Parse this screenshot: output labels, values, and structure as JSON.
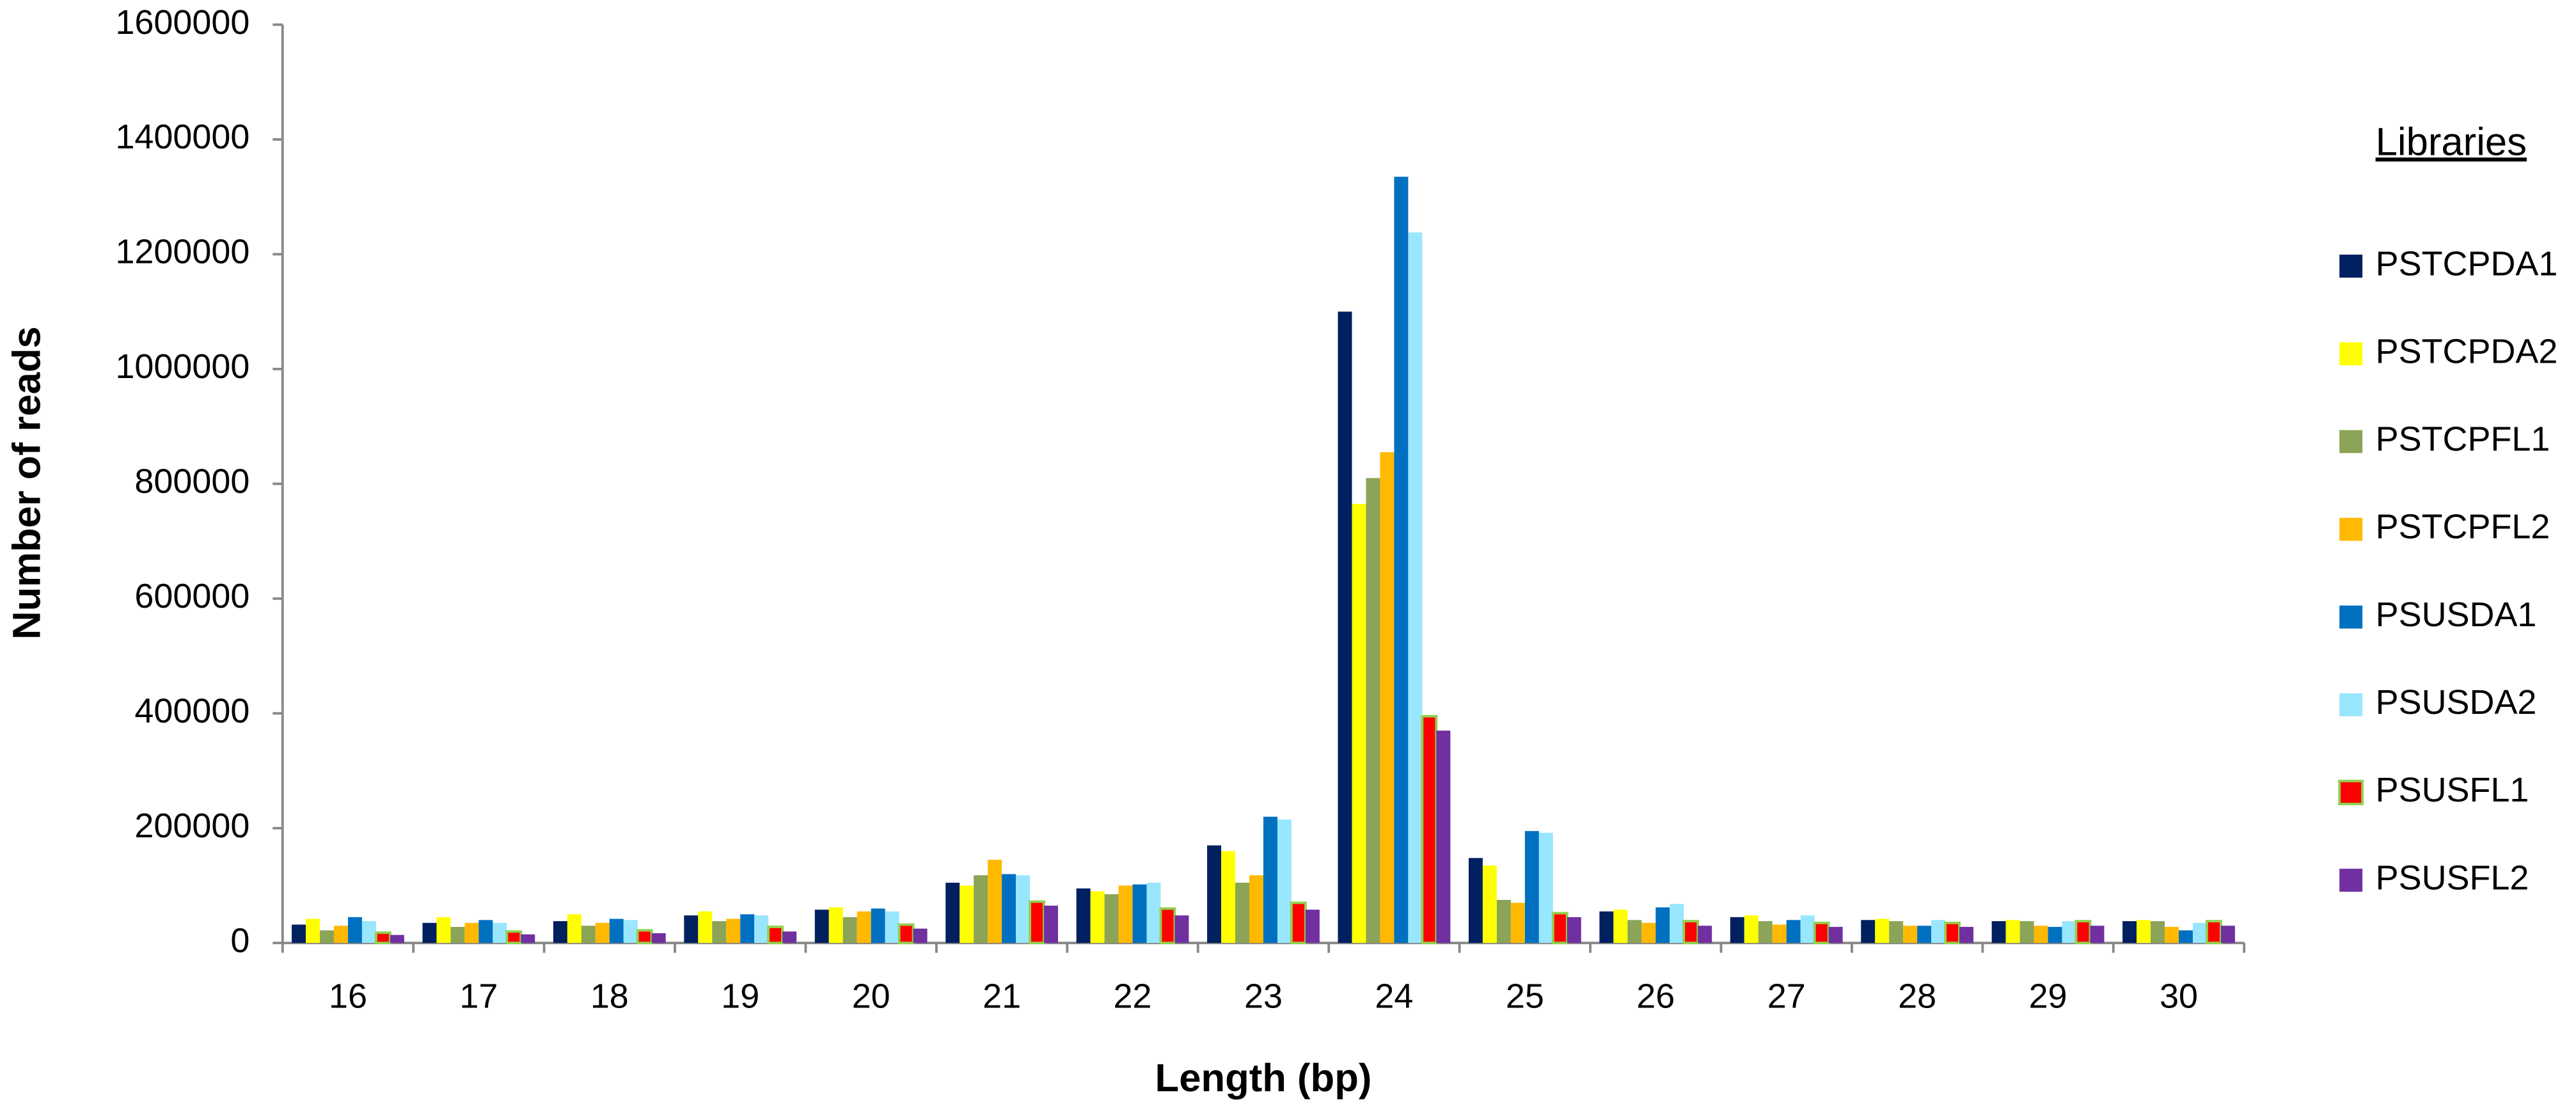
{
  "chart_data": {
    "type": "bar",
    "x_label": "Length (bp)",
    "y_label": "Number of reads",
    "legend_title": "Libraries",
    "legend_position": "right",
    "categories": [
      "16",
      "17",
      "18",
      "19",
      "20",
      "21",
      "22",
      "23",
      "24",
      "25",
      "26",
      "27",
      "28",
      "29",
      "30"
    ],
    "ylim": [
      0,
      1600000
    ],
    "yticks": [
      0,
      200000,
      400000,
      600000,
      800000,
      1000000,
      1200000,
      1400000,
      1600000
    ],
    "series": [
      {
        "name": "PSTCPDA1",
        "color": "#002060",
        "values": [
          32000,
          35000,
          38000,
          48000,
          58000,
          105000,
          95000,
          170000,
          1100000,
          148000,
          55000,
          45000,
          40000,
          38000,
          38000
        ]
      },
      {
        "name": "PSTCPDA2",
        "color": "#ffff00",
        "values": [
          42000,
          45000,
          50000,
          55000,
          62000,
          100000,
          90000,
          160000,
          765000,
          135000,
          58000,
          48000,
          42000,
          40000,
          40000
        ]
      },
      {
        "name": "PSTCPFL1",
        "color": "#8ba457",
        "values": [
          22000,
          28000,
          30000,
          38000,
          45000,
          118000,
          85000,
          105000,
          810000,
          75000,
          40000,
          38000,
          38000,
          38000,
          38000
        ]
      },
      {
        "name": "PSTCPFL2",
        "color": "#ffb900",
        "values": [
          30000,
          35000,
          35000,
          42000,
          55000,
          145000,
          100000,
          118000,
          855000,
          70000,
          35000,
          32000,
          30000,
          30000,
          28000
        ]
      },
      {
        "name": "PSUSDA1",
        "color": "#0070c0",
        "values": [
          45000,
          40000,
          42000,
          50000,
          60000,
          120000,
          102000,
          220000,
          1335000,
          195000,
          62000,
          40000,
          30000,
          28000,
          22000
        ]
      },
      {
        "name": "PSUSDA2",
        "color": "#99e6ff",
        "values": [
          38000,
          35000,
          40000,
          48000,
          55000,
          118000,
          105000,
          215000,
          1238000,
          192000,
          68000,
          48000,
          40000,
          38000,
          35000
        ]
      },
      {
        "name": "PSUSFL1",
        "color": "#ff0000",
        "edgecolor": "#92d050",
        "values": [
          18000,
          20000,
          22000,
          28000,
          32000,
          72000,
          60000,
          70000,
          395000,
          52000,
          38000,
          35000,
          35000,
          38000,
          38000
        ]
      },
      {
        "name": "PSUSFL2",
        "color": "#7030a0",
        "values": [
          14000,
          15000,
          17000,
          20000,
          25000,
          65000,
          48000,
          58000,
          370000,
          45000,
          30000,
          28000,
          28000,
          30000,
          30000
        ]
      }
    ]
  }
}
